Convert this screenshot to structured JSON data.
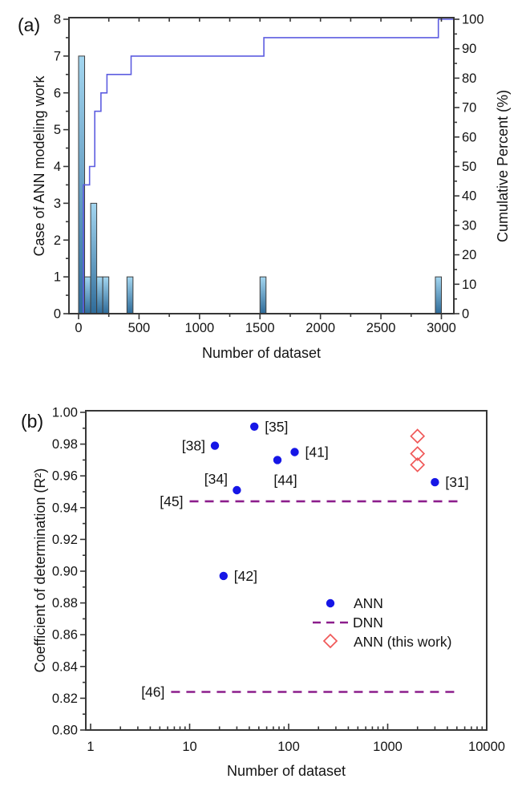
{
  "chart_data": [
    {
      "id": "a",
      "panel_label": "(a)",
      "type": "bar",
      "subtype": "histogram_with_cumulative_line",
      "xlabel": "Number of dataset",
      "ylabel": "Case of ANN modeling work",
      "y2label": "Cumulative Percent (%)",
      "xlim": [
        -80,
        3100
      ],
      "ylim": [
        0,
        8
      ],
      "y2lim": [
        0,
        100
      ],
      "x_ticks": [
        0,
        500,
        1000,
        1500,
        2000,
        2500,
        3000
      ],
      "x_minor_step": 250,
      "y_ticks": [
        0,
        1,
        2,
        3,
        4,
        5,
        6,
        7,
        8
      ],
      "y2_ticks": [
        0,
        10,
        20,
        30,
        40,
        50,
        60,
        70,
        80,
        90,
        100
      ],
      "bar_bin_width": 50,
      "bars": [
        {
          "bin_start": 0,
          "count": 7
        },
        {
          "bin_start": 50,
          "count": 1
        },
        {
          "bin_start": 100,
          "count": 3
        },
        {
          "bin_start": 150,
          "count": 1
        },
        {
          "bin_start": 200,
          "count": 1
        },
        {
          "bin_start": 400,
          "count": 1
        },
        {
          "bin_start": 1500,
          "count": 1
        },
        {
          "bin_start": 2950,
          "count": 1
        }
      ],
      "cumulative_percent_steps": [
        [
          40,
          0
        ],
        [
          40,
          43.75
        ],
        [
          91,
          43.75
        ],
        [
          91,
          50
        ],
        [
          134,
          50
        ],
        [
          134,
          68.75
        ],
        [
          185,
          68.75
        ],
        [
          185,
          75
        ],
        [
          235,
          75
        ],
        [
          235,
          81.25
        ],
        [
          434,
          81.25
        ],
        [
          434,
          87.5
        ],
        [
          1532,
          87.5
        ],
        [
          1532,
          93.75
        ],
        [
          2975,
          93.75
        ],
        [
          2975,
          100
        ],
        [
          3099,
          100
        ]
      ],
      "colors": {
        "bar_top": "#a3d6f0",
        "bar_bottom": "#2e6b99",
        "bar_edge": "#3f3f3f",
        "cumulative_line": "#5d5de0",
        "axis": "#373737",
        "text": "#141414"
      }
    },
    {
      "id": "b",
      "panel_label": "(b)",
      "type": "scatter",
      "xlabel": "Number of dataset",
      "ylabel": "Coefficient of determination (R²)",
      "x_scale": "log",
      "xlim": [
        1,
        10000
      ],
      "ylim": [
        0.8,
        1.0
      ],
      "x_ticks": [
        1,
        10,
        100,
        1000,
        10000
      ],
      "y_ticks": [
        0.8,
        0.82,
        0.84,
        0.86,
        0.88,
        0.9,
        0.92,
        0.94,
        0.96,
        0.98,
        1.0
      ],
      "series": [
        {
          "name": "ANN",
          "marker": "filled_circle",
          "color": "#1616e6",
          "points": [
            {
              "ref": "[38]",
              "x": 18,
              "y": 0.979
            },
            {
              "ref": "[35]",
              "x": 45,
              "y": 0.991
            },
            {
              "ref": "[34]",
              "x": 30,
              "y": 0.951
            },
            {
              "ref": "[44]",
              "x": 77,
              "y": 0.97
            },
            {
              "ref": "[41]",
              "x": 115,
              "y": 0.975
            },
            {
              "ref": "[42]",
              "x": 22,
              "y": 0.897
            },
            {
              "ref": "[31]",
              "x": 3000,
              "y": 0.956
            }
          ]
        },
        {
          "name": "DNN",
          "marker": "dashed_line",
          "color": "#8c1d8c",
          "lines": [
            {
              "ref": "[45]",
              "y": 0.944,
              "x_start": 10,
              "x_end": 5200
            },
            {
              "ref": "[46]",
              "y": 0.824,
              "x_start": 6.5,
              "x_end": 5000
            }
          ]
        },
        {
          "name": "ANN (this work)",
          "marker": "open_diamond",
          "color": "#f05858",
          "points": [
            {
              "x": 2000,
              "y": 0.985
            },
            {
              "x": 2000,
              "y": 0.974
            },
            {
              "x": 2000,
              "y": 0.967
            }
          ]
        }
      ],
      "legend": {
        "items": [
          {
            "label": "ANN",
            "marker": "filled_circle"
          },
          {
            "label": "DNN",
            "marker": "dashed_line"
          },
          {
            "label": "ANN (this work)",
            "marker": "open_diamond"
          }
        ]
      },
      "colors": {
        "axis": "#373737",
        "text": "#141414"
      }
    }
  ]
}
